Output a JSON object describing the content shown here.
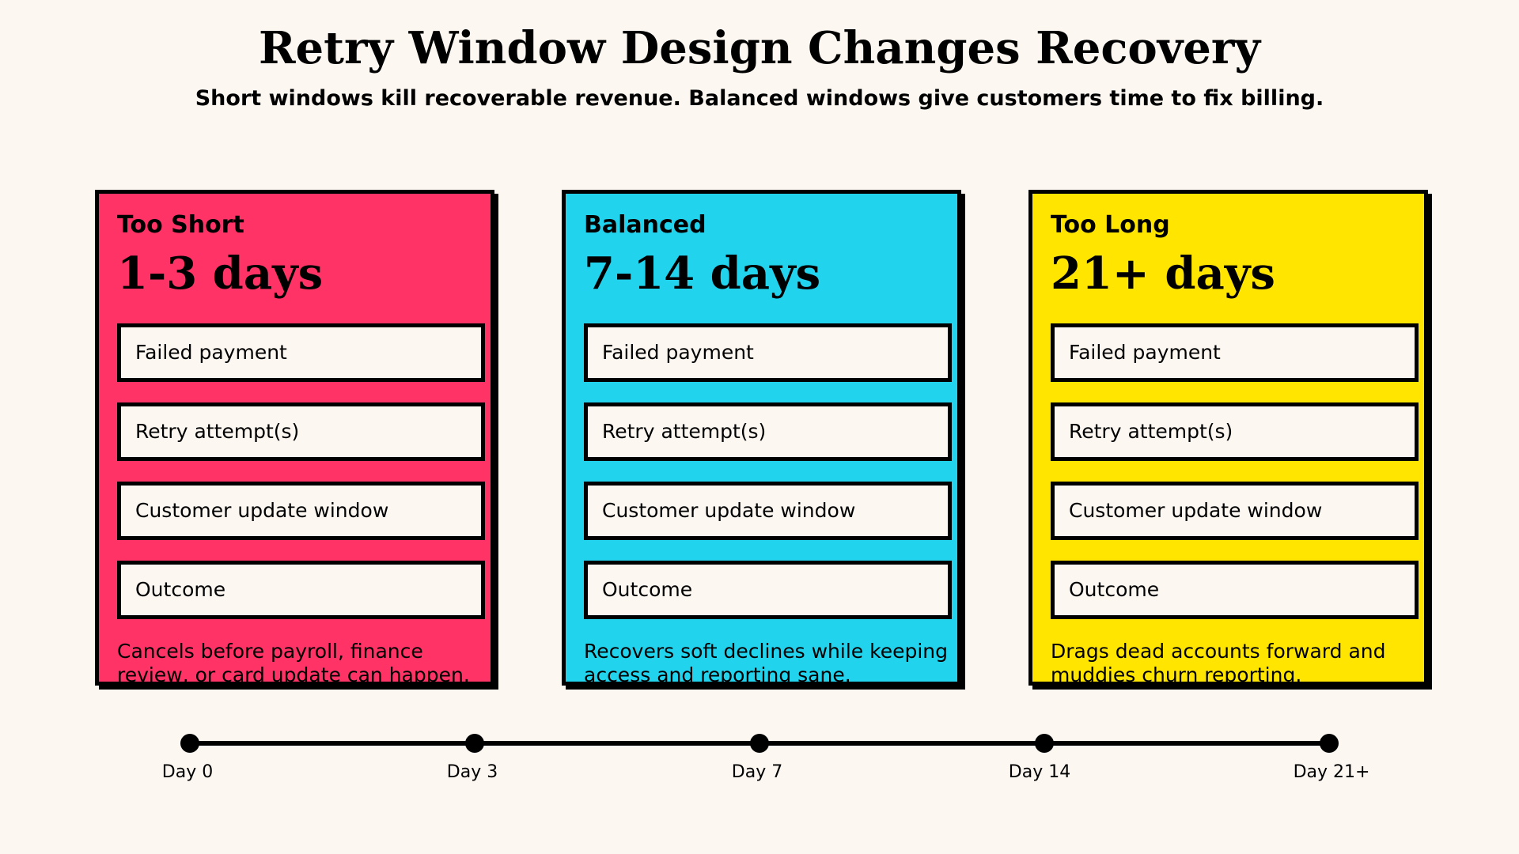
{
  "header": {
    "title": "Retry Window Design Changes Recovery",
    "subtitle": "Short windows kill recoverable revenue. Balanced windows give customers time to fix billing."
  },
  "colors": {
    "background": "#fdf7f1",
    "too_short": "#ff3366",
    "balanced": "#22d3ee",
    "too_long": "#ffe500",
    "outline": "#000000"
  },
  "panels": [
    {
      "label": "Too Short",
      "window": "1-3 days",
      "steps": [
        "Failed payment",
        "Retry attempt(s)",
        "Customer update window",
        "Outcome"
      ],
      "description": "Cancels before payroll, finance review, or card update can happen."
    },
    {
      "label": "Balanced",
      "window": "7-14 days",
      "steps": [
        "Failed payment",
        "Retry attempt(s)",
        "Customer update window",
        "Outcome"
      ],
      "description": "Recovers soft declines while keeping access and reporting sane."
    },
    {
      "label": "Too Long",
      "window": "21+ days",
      "steps": [
        "Failed payment",
        "Retry attempt(s)",
        "Customer update window",
        "Outcome"
      ],
      "description": "Drags dead accounts forward and muddies churn reporting."
    }
  ],
  "timeline": {
    "ticks": [
      "Day 0",
      "Day 3",
      "Day 7",
      "Day 14",
      "Day 21+"
    ]
  }
}
